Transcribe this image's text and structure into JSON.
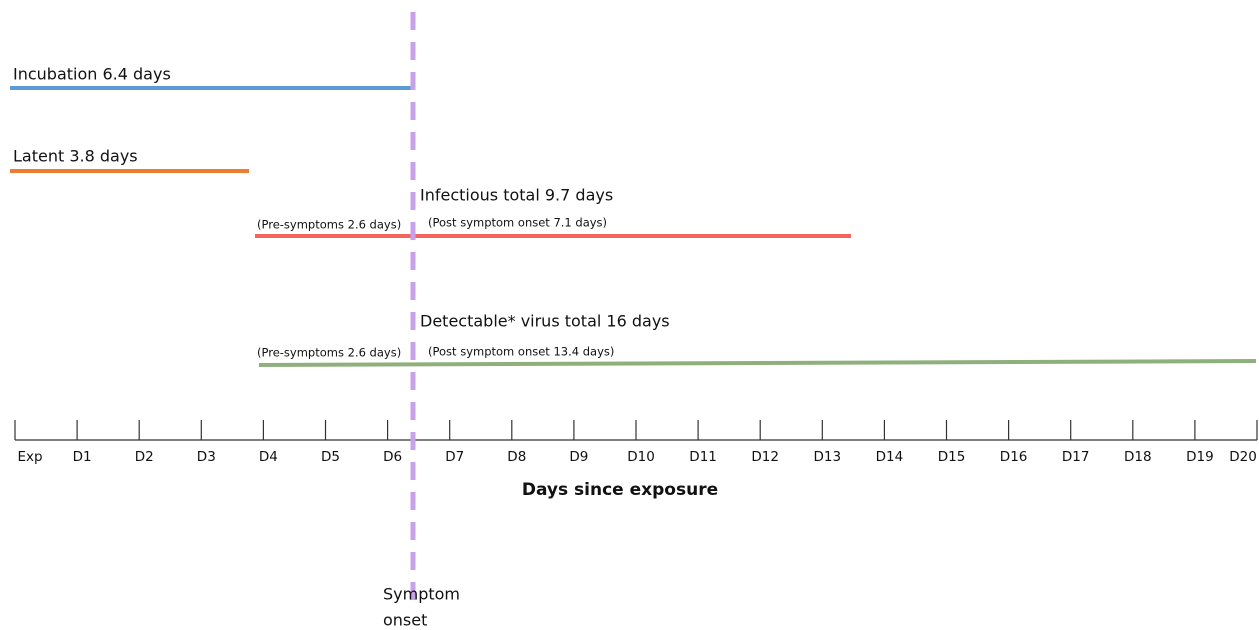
{
  "periods": [
    {
      "label": "Incubation 6.4 days"
    },
    {
      "label": "Latent 3.8 days"
    },
    {
      "label": "Infectious total 9.7 days",
      "pre_label": "(Pre-symptoms 2.6 days)",
      "post_label": "(Post symptom onset 7.1 days)"
    },
    {
      "label": "Detectable* virus total 16 days",
      "pre_label": "(Pre-symptoms 2.6 days)",
      "post_label": "(Post symptom onset 13.4 days)"
    }
  ],
  "axis": {
    "title": "Days since exposure",
    "ticks": [
      "Exp",
      "D1",
      "D2",
      "D3",
      "D4",
      "D5",
      "D6",
      "D7",
      "D8",
      "D9",
      "D10",
      "D11",
      "D12",
      "D13",
      "D14",
      "D15",
      "D16",
      "D17",
      "D18",
      "D19",
      "D20"
    ]
  },
  "marker": {
    "label_lines": [
      "Symptom",
      "onset"
    ]
  }
}
